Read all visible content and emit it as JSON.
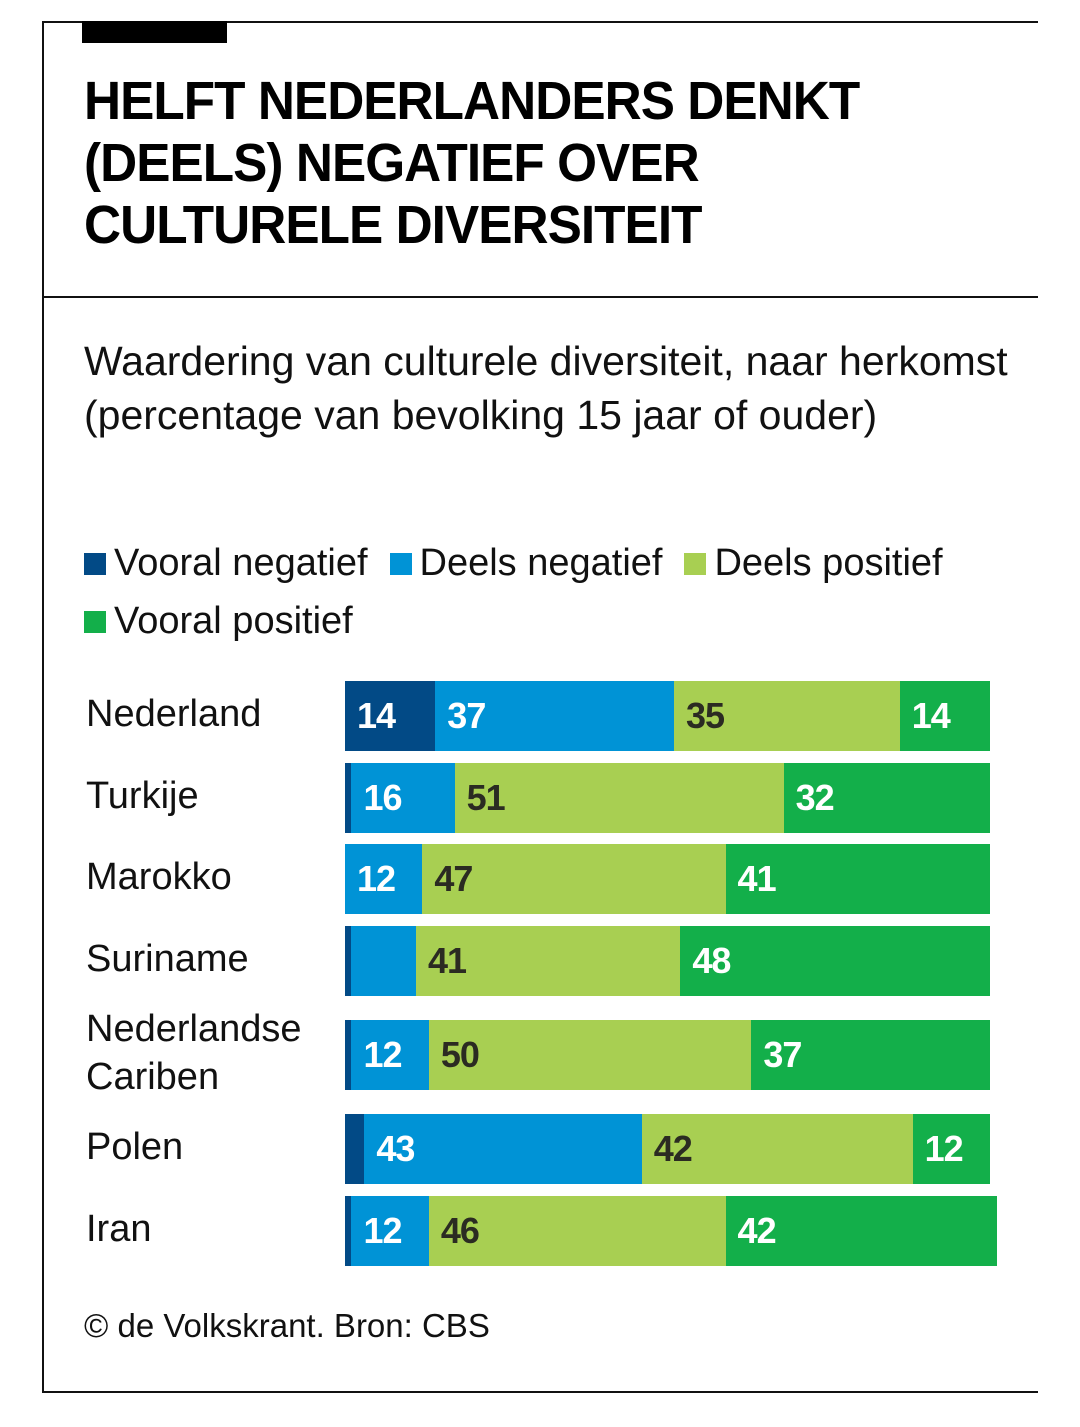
{
  "header": {
    "title": "HELFT NEDERLANDERS DENKT (DEELS) NEGATIEF OVER CULTURELE DIVERSITEIT",
    "subtitle": "Waardering van culturele diversiteit, naar herkomst (percentage van bevolking 15 jaar of ouder)"
  },
  "footer": {
    "source": "© de Volkskrant. Bron: CBS"
  },
  "chart_data": {
    "type": "bar",
    "orientation": "horizontal",
    "stacked": true,
    "title": "HELFT NEDERLANDERS DENKT (DEELS) NEGATIEF OVER CULTURELE DIVERSITEIT",
    "subtitle": "Waardering van culturele diversiteit, naar herkomst (percentage van bevolking 15 jaar of ouder)",
    "xlabel": "",
    "ylabel": "",
    "xlim": [
      0,
      100
    ],
    "grid": false,
    "legend_position": "top",
    "categories": [
      "Nederland",
      "Turkije",
      "Marokko",
      "Suriname",
      "Nederlandse Cariben",
      "Polen",
      "Iran"
    ],
    "category_lines": [
      [
        "Nederland"
      ],
      [
        "Turkije"
      ],
      [
        "Marokko"
      ],
      [
        "Suriname"
      ],
      [
        "Nederlandse",
        "Cariben"
      ],
      [
        "Polen"
      ],
      [
        "Iran"
      ]
    ],
    "series": [
      {
        "name": "Vooral negatief",
        "color": "#024a86",
        "label_color": "#ffffff",
        "values": [
          14,
          1,
          0,
          1,
          1,
          3,
          1
        ],
        "show_labels": [
          true,
          false,
          false,
          false,
          false,
          false,
          false
        ]
      },
      {
        "name": "Deels negatief",
        "color": "#0093d6",
        "label_color": "#ffffff",
        "values": [
          37,
          16,
          12,
          10,
          12,
          43,
          12
        ],
        "show_labels": [
          true,
          true,
          true,
          false,
          true,
          true,
          true
        ]
      },
      {
        "name": "Deels positief",
        "color": "#a8cf52",
        "label_color": "#2b2b22",
        "values": [
          35,
          51,
          47,
          41,
          50,
          42,
          46
        ],
        "show_labels": [
          true,
          true,
          true,
          true,
          true,
          true,
          true
        ]
      },
      {
        "name": "Vooral positief",
        "color": "#13af4a",
        "label_color": "#ffffff",
        "values": [
          14,
          32,
          41,
          48,
          37,
          12,
          42
        ],
        "show_labels": [
          true,
          true,
          true,
          true,
          true,
          true,
          true
        ]
      }
    ]
  }
}
